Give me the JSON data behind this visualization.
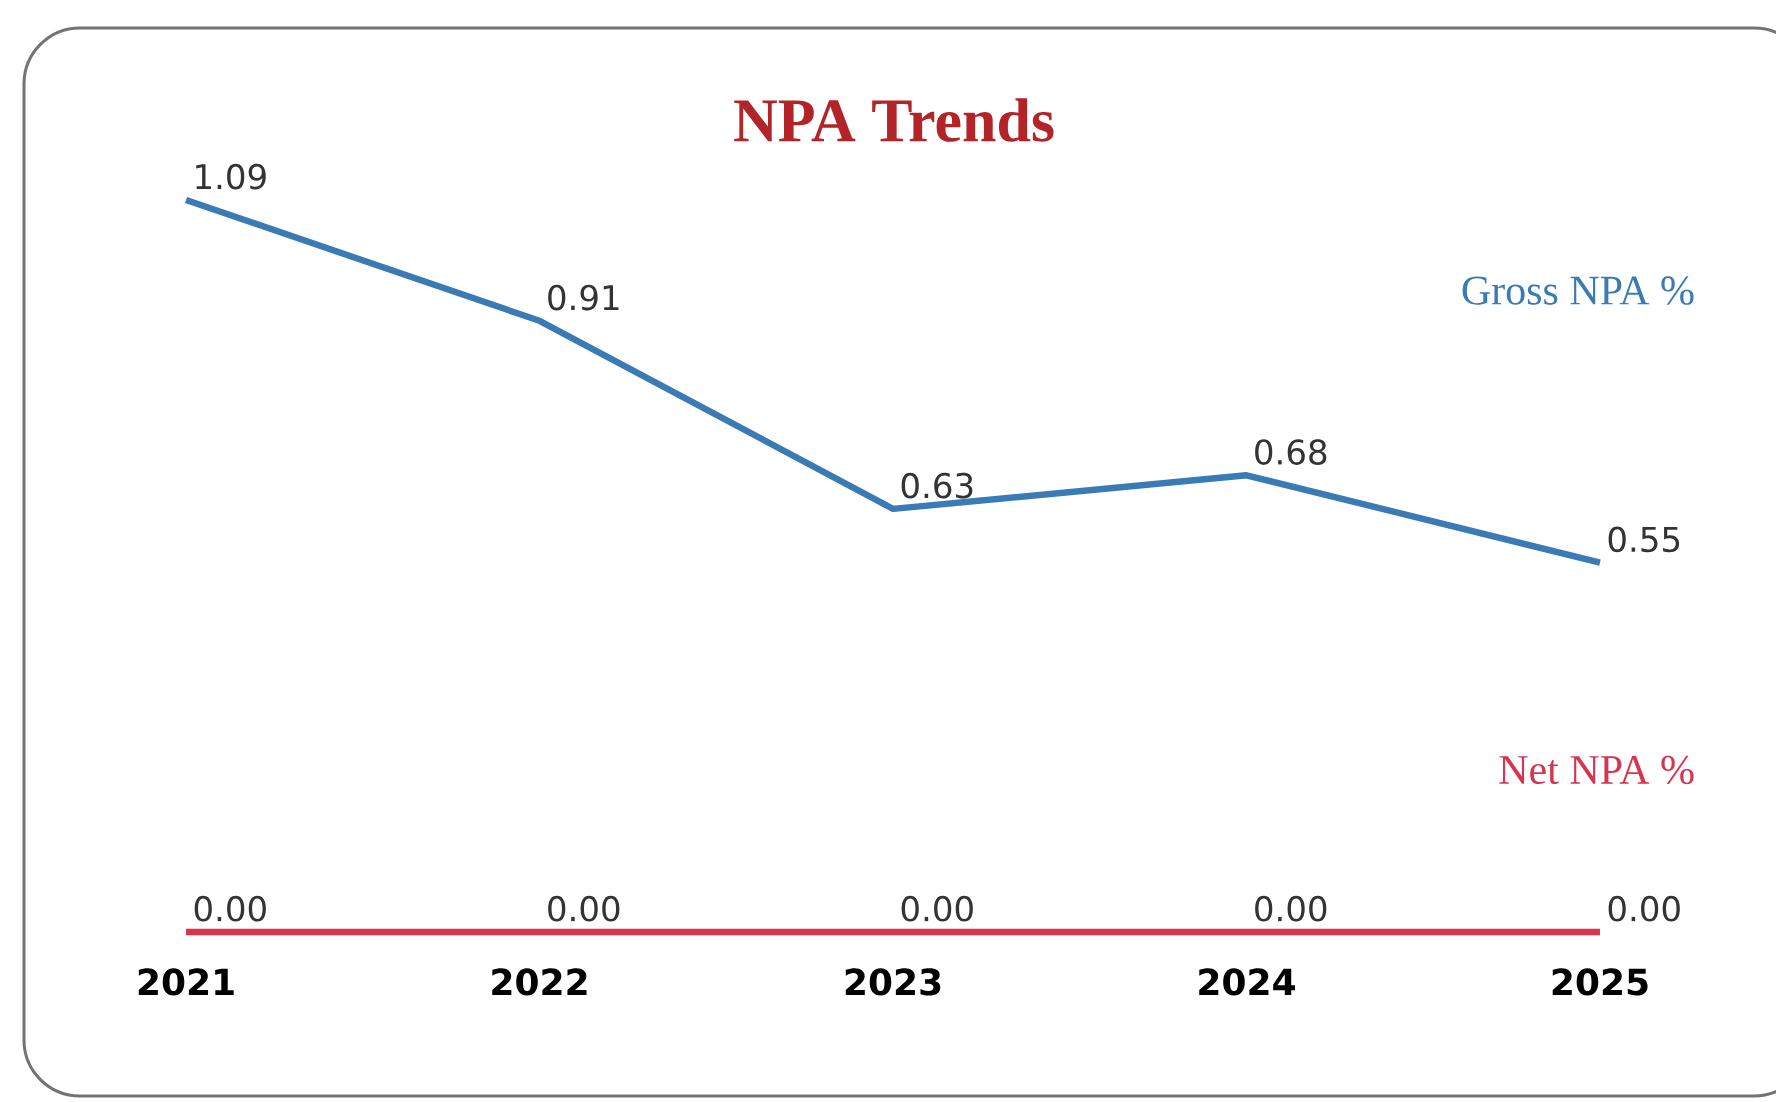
{
  "chart_data": {
    "type": "line",
    "title": "NPA Trends",
    "categories": [
      "2021",
      "2022",
      "2023",
      "2024",
      "2025"
    ],
    "series": [
      {
        "name": "Gross NPA %",
        "color": "#3a7ab5",
        "values": [
          1.09,
          0.91,
          0.63,
          0.68,
          0.55
        ],
        "value_labels": [
          "1.09",
          "0.91",
          "0.63",
          "0.68",
          "0.55"
        ]
      },
      {
        "name": "Net NPA %",
        "color": "#d8334f",
        "values": [
          0,
          0,
          0,
          0,
          0
        ],
        "value_labels": [
          "0.00",
          "0.00",
          "0.00",
          "0.00",
          "0.00"
        ]
      }
    ],
    "marker": "none",
    "line_style": "solid"
  }
}
